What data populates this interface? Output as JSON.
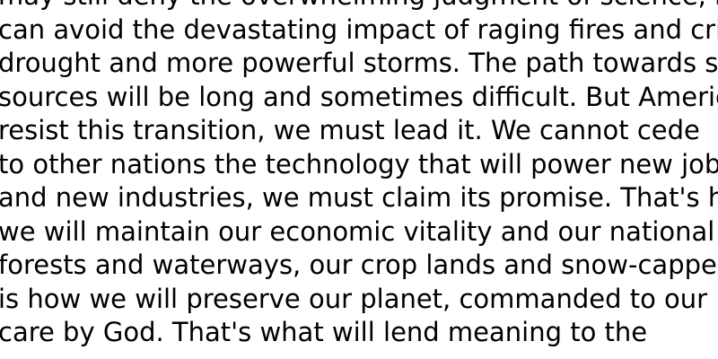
{
  "document": {
    "lines": [
      "may still deny the overwhelming judgment of science, but none",
      "can avoid the devastating impact of raging fires and crippling",
      "drought and more powerful storms. The path towards sustainable energy",
      "sources will be long and sometimes difficult. But America cannot",
      "resist this transition, we must lead it. We cannot cede",
      "to other nations the technology that will power new jobs",
      "and new industries, we must claim its promise. That's how",
      "we will maintain our economic vitality and our national treasure,",
      "forests and waterways, our crop lands and snow-capped peaks. That",
      "is how we will preserve our planet, commanded to our",
      "care by God. That's what will lend meaning to the"
    ]
  }
}
